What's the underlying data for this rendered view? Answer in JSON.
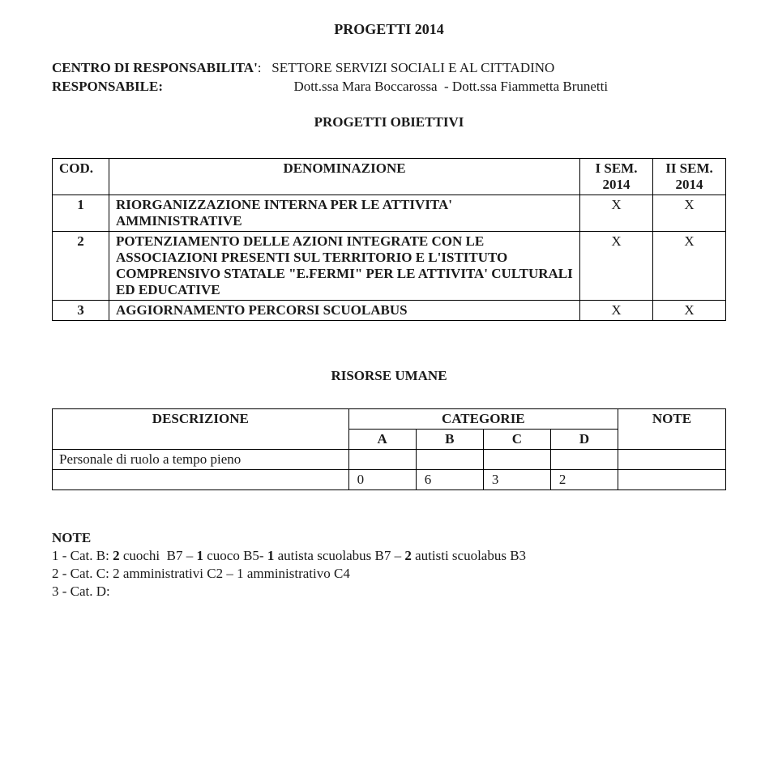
{
  "title": "PROGETTI 2014",
  "resp": {
    "label1": "CENTRO DI RESPONSABILITA'",
    "value1": ":   SETTORE SERVIZI SOCIALI E AL CITTADINO",
    "label2": "RESPONSABILE:",
    "value2": "                                      Dott.ssa Mara Boccarossa  - Dott.ssa Fiammetta Brunetti"
  },
  "obiettivi_heading": "PROGETTI OBIETTIVI",
  "table1": {
    "head": {
      "cod": "COD.",
      "denom": "DENOMINAZIONE",
      "sem1": "I SEM.\n2014",
      "sem2": "II SEM.\n2014"
    },
    "rows": [
      {
        "cod": "1",
        "denom": "RIORGANIZZAZIONE INTERNA   PER  LE ATTIVITA' AMMINISTRATIVE",
        "s1": "X",
        "s2": "X"
      },
      {
        "cod": "2",
        "denom": "POTENZIAMENTO DELLE AZIONI  INTEGRATE CON  LE ASSOCIAZIONI PRESENTI SUL TERRITORIO E L'ISTITUTO COMPRENSIVO  STATALE  \"E.FERMI\"  PER LE ATTIVITA' CULTURALI  ED EDUCATIVE",
        "s1": "X",
        "s2": "X"
      },
      {
        "cod": "3",
        "denom": "AGGIORNAMENTO PERCORSI  SCUOLABUS",
        "s1": "X",
        "s2": "X"
      }
    ]
  },
  "risorse_heading": "RISORSE UMANE",
  "table2": {
    "head": {
      "desc": "DESCRIZIONE",
      "cat": "CATEGORIE",
      "note": "NOTE",
      "a": "A",
      "b": "B",
      "c": "C",
      "d": "D"
    },
    "rows": [
      {
        "desc": "Personale di ruolo a tempo pieno",
        "a": "",
        "b": "",
        "c": "",
        "d": "",
        "note": ""
      },
      {
        "desc": "",
        "a": "0",
        "b": "6",
        "c": "3",
        "d": "2",
        "note": ""
      }
    ]
  },
  "notes": {
    "title": "NOTE",
    "line1_runs": [
      {
        "t": "1 - Cat. B: ",
        "b": false
      },
      {
        "t": "2",
        "b": true
      },
      {
        "t": " cuochi  B7 – ",
        "b": false
      },
      {
        "t": "1",
        "b": true
      },
      {
        "t": " cuoco B5- ",
        "b": false
      },
      {
        "t": "1",
        "b": true
      },
      {
        "t": " autista scuolabus B7 – ",
        "b": false
      },
      {
        "t": "2",
        "b": true
      },
      {
        "t": " autisti scuolabus B3",
        "b": false
      }
    ],
    "line2": "2 - Cat. C: 2 amministrativi C2 – 1 amministrativo C4",
    "line3": "3 - Cat. D:"
  }
}
